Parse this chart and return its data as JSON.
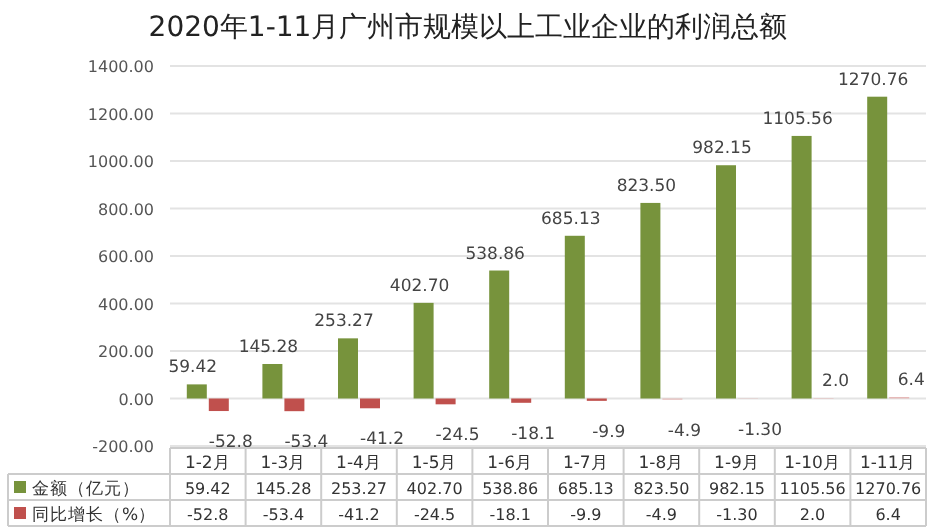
{
  "chart_data": {
    "type": "bar",
    "title": "2020年1-11月广州市规模以上工业企业的利润总额",
    "categories": [
      "1-2月",
      "1-3月",
      "1-4月",
      "1-5月",
      "1-6月",
      "1-7月",
      "1-8月",
      "1-9月",
      "1-10月",
      "1-11月"
    ],
    "series": [
      {
        "name": "金额（亿元）",
        "color": "#77933c",
        "values": [
          59.42,
          145.28,
          253.27,
          402.7,
          538.86,
          685.13,
          823.5,
          982.15,
          1105.56,
          1270.76
        ],
        "value_labels": [
          "59.42",
          "145.28",
          "253.27",
          "402.70",
          "538.86",
          "685.13",
          "823.50",
          "982.15",
          "1105.56",
          "1270.76"
        ]
      },
      {
        "name": "同比增长（%）",
        "color": "#c0504d",
        "colors": [
          "#c0504d",
          "#c0504d",
          "#c0504d",
          "#c0504d",
          "#c0504d",
          "#c0504d",
          "#e6b9b8",
          "#e6b9b8",
          "#e6b9b8",
          "#e6b9b8"
        ],
        "values": [
          -52.8,
          -53.4,
          -41.2,
          -24.5,
          -18.1,
          -9.9,
          -4.9,
          -1.3,
          2.0,
          6.4
        ],
        "value_labels": [
          "-52.8",
          "-53.4",
          "-41.2",
          "-24.5",
          "-18.1",
          "-9.9",
          "-4.9",
          "-1.30",
          "2.0",
          "6.4"
        ]
      }
    ],
    "ylim": [
      -200,
      1400
    ],
    "yticks": [
      {
        "value": -200,
        "label": "-200.00"
      },
      {
        "value": 0,
        "label": "0.00"
      },
      {
        "value": 200,
        "label": "200.00"
      },
      {
        "value": 400,
        "label": "400.00"
      },
      {
        "value": 600,
        "label": "600.00"
      },
      {
        "value": 800,
        "label": "800.00"
      },
      {
        "value": 1000,
        "label": "1000.00"
      },
      {
        "value": 1200,
        "label": "1200.00"
      },
      {
        "value": 1400,
        "label": "1400.00"
      }
    ],
    "grid": "y",
    "legend": "bottom left"
  }
}
